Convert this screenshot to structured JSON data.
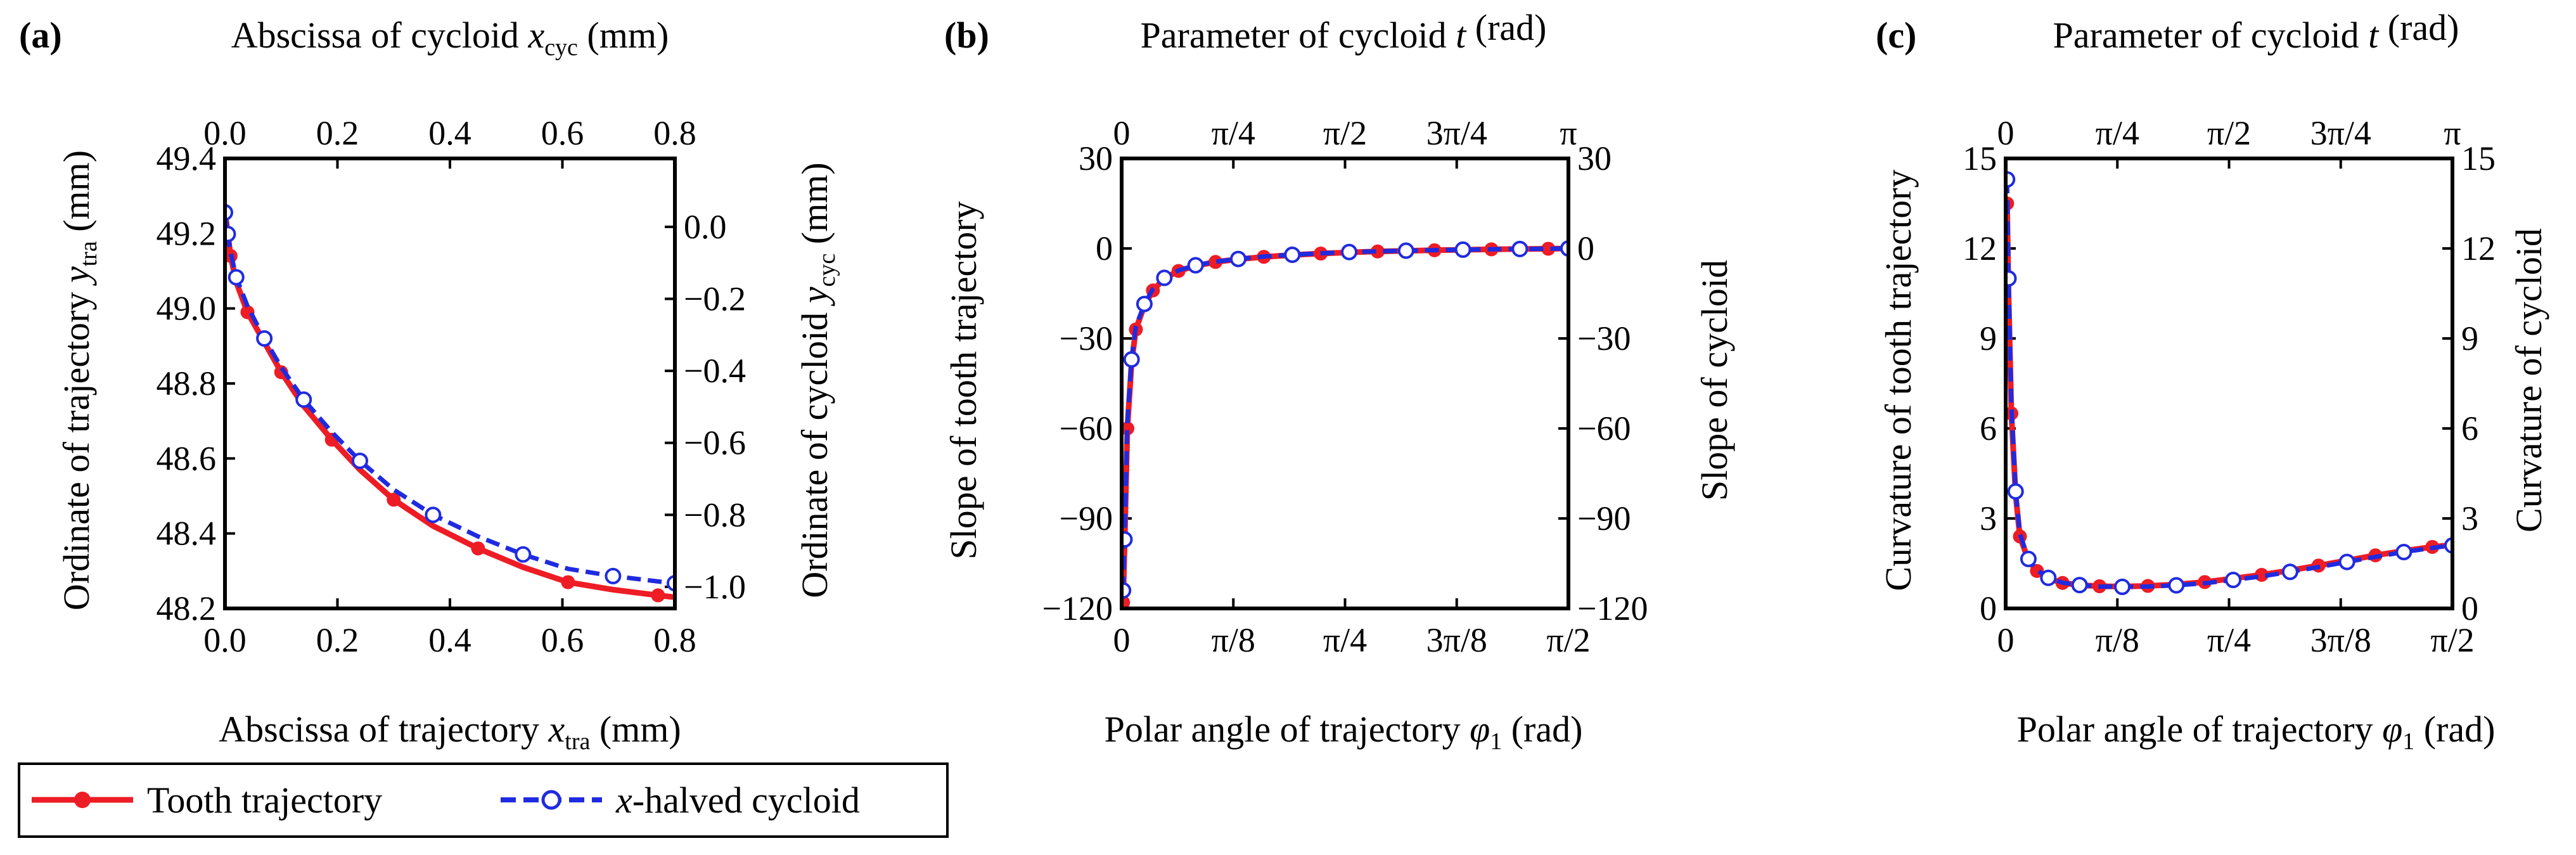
{
  "chart_data": [
    {
      "type": "line",
      "panel_label": "(a)",
      "top_xlabel": {
        "pre": "Abscissa of cycloid ",
        "var": "x",
        "sub": "cyc",
        "post": " (mm)"
      },
      "bottom_xlabel": {
        "pre": "Abscissa of trajectory ",
        "var": "x",
        "sub": "tra",
        "post": " (mm)"
      },
      "left_ylabel": {
        "pre": "Ordinate of trajectory ",
        "var": "y",
        "sub": "tra",
        "post": " (mm)"
      },
      "right_ylabel": {
        "pre": "Ordinate of cycloid ",
        "var": "y",
        "sub": "cyc",
        "post": " (mm)"
      },
      "xlim": [
        0,
        0.8
      ],
      "ylim_left": [
        48.2,
        49.4
      ],
      "ylim_right": [
        -1.06,
        0.19
      ],
      "bottom_ticks": [
        {
          "v": 0,
          "label": "0.0"
        },
        {
          "v": 0.2,
          "label": "0.2"
        },
        {
          "v": 0.4,
          "label": "0.4"
        },
        {
          "v": 0.6,
          "label": "0.6"
        },
        {
          "v": 0.8,
          "label": "0.8"
        }
      ],
      "top_ticks": [
        {
          "v": 0,
          "label": "0.0"
        },
        {
          "v": 0.2,
          "label": "0.2"
        },
        {
          "v": 0.4,
          "label": "0.4"
        },
        {
          "v": 0.6,
          "label": "0.6"
        },
        {
          "v": 0.8,
          "label": "0.8"
        }
      ],
      "left_ticks": [
        {
          "v": 48.2,
          "label": "48.2"
        },
        {
          "v": 48.4,
          "label": "48.4"
        },
        {
          "v": 48.6,
          "label": "48.6"
        },
        {
          "v": 48.8,
          "label": "48.8"
        },
        {
          "v": 49.0,
          "label": "49.0"
        },
        {
          "v": 49.2,
          "label": "49.2"
        },
        {
          "v": 49.4,
          "label": "49.4"
        }
      ],
      "right_ticks": [
        {
          "v": 0.0,
          "label": "0.0"
        },
        {
          "v": -0.2,
          "label": "−0.2"
        },
        {
          "v": -0.4,
          "label": "−0.4"
        },
        {
          "v": -0.6,
          "label": "−0.6"
        },
        {
          "v": -0.8,
          "label": "−0.8"
        },
        {
          "v": -1.0,
          "label": "−1.0"
        }
      ],
      "series": [
        {
          "name": "Tooth trajectory",
          "axis": "left",
          "x": [
            0.0,
            0.005,
            0.01,
            0.02,
            0.04,
            0.07,
            0.1,
            0.14,
            0.19,
            0.24,
            0.3,
            0.37,
            0.45,
            0.53,
            0.61,
            0.69,
            0.77,
            0.8
          ],
          "y": [
            49.26,
            49.2,
            49.14,
            49.07,
            48.99,
            48.91,
            48.83,
            48.74,
            48.65,
            48.57,
            48.49,
            48.42,
            48.36,
            48.31,
            48.27,
            48.25,
            48.235,
            48.23
          ]
        },
        {
          "name": "x-halved cycloid",
          "axis": "right",
          "x": [
            0.0,
            0.005,
            0.01,
            0.02,
            0.04,
            0.07,
            0.1,
            0.14,
            0.19,
            0.24,
            0.3,
            0.37,
            0.45,
            0.53,
            0.61,
            0.69,
            0.77,
            0.8
          ],
          "y": [
            0.04,
            -0.02,
            -0.07,
            -0.14,
            -0.22,
            -0.31,
            -0.39,
            -0.48,
            -0.57,
            -0.65,
            -0.73,
            -0.8,
            -0.86,
            -0.91,
            -0.95,
            -0.97,
            -0.985,
            -0.99
          ]
        }
      ]
    },
    {
      "type": "line",
      "panel_label": "(b)",
      "top_xlabel": {
        "pre": "Parameter of cycloid ",
        "var": "t",
        "sub": "",
        "post": " (rad)"
      },
      "bottom_xlabel": {
        "pre": "Polar angle of trajectory ",
        "var": "φ",
        "sub": "1",
        "post": " (rad)"
      },
      "left_ylabel": {
        "pre": "Slope of tooth trajectory",
        "var": "",
        "sub": "",
        "post": ""
      },
      "right_ylabel": {
        "pre": "Slope of cycloid",
        "var": "",
        "sub": "",
        "post": ""
      },
      "xlim": [
        0,
        1.5708
      ],
      "ylim_left": [
        -120,
        30
      ],
      "ylim_right": [
        -120,
        30
      ],
      "bottom_ticks": [
        {
          "v": 0,
          "label": "0"
        },
        {
          "v": 0.3927,
          "label": "π/8"
        },
        {
          "v": 0.7854,
          "label": "π/4"
        },
        {
          "v": 1.1781,
          "label": "3π/8"
        },
        {
          "v": 1.5708,
          "label": "π/2"
        }
      ],
      "top_ticks": [
        {
          "v": 0,
          "label": "0"
        },
        {
          "v": 0.3927,
          "label": "π/4"
        },
        {
          "v": 0.7854,
          "label": "π/2"
        },
        {
          "v": 1.1781,
          "label": "3π/4"
        },
        {
          "v": 1.5708,
          "label": "π"
        }
      ],
      "left_ticks": [
        {
          "v": -120,
          "label": "−120"
        },
        {
          "v": -90,
          "label": "−90"
        },
        {
          "v": -60,
          "label": "−60"
        },
        {
          "v": -30,
          "label": "−30"
        },
        {
          "v": 0,
          "label": "0"
        },
        {
          "v": 30,
          "label": "30"
        }
      ],
      "right_ticks": [
        {
          "v": -120,
          "label": "−120"
        },
        {
          "v": -90,
          "label": "−90"
        },
        {
          "v": -60,
          "label": "−60"
        },
        {
          "v": -30,
          "label": "−30"
        },
        {
          "v": 0,
          "label": "0"
        },
        {
          "v": 30,
          "label": "30"
        }
      ],
      "series": [
        {
          "name": "Tooth trajectory",
          "axis": "left",
          "x": [
            0.005,
            0.01,
            0.02,
            0.035,
            0.05,
            0.08,
            0.11,
            0.15,
            0.2,
            0.26,
            0.33,
            0.41,
            0.5,
            0.6,
            0.7,
            0.8,
            0.9,
            1.0,
            1.1,
            1.2,
            1.3,
            1.4,
            1.5,
            1.5708
          ],
          "y": [
            -118,
            -100,
            -60,
            -38,
            -27,
            -19,
            -14,
            -10,
            -7.5,
            -5.8,
            -4.5,
            -3.6,
            -2.8,
            -2.2,
            -1.7,
            -1.3,
            -1.0,
            -0.8,
            -0.6,
            -0.45,
            -0.3,
            -0.2,
            -0.1,
            0
          ]
        },
        {
          "name": "x-halved cycloid",
          "axis": "right",
          "x": [
            0.005,
            0.01,
            0.02,
            0.035,
            0.05,
            0.08,
            0.11,
            0.15,
            0.2,
            0.26,
            0.33,
            0.41,
            0.5,
            0.6,
            0.7,
            0.8,
            0.9,
            1.0,
            1.1,
            1.2,
            1.3,
            1.4,
            1.5,
            1.5708
          ],
          "y": [
            -114,
            -97,
            -58,
            -37,
            -26,
            -18.5,
            -13.5,
            -9.8,
            -7.3,
            -5.6,
            -4.4,
            -3.5,
            -2.7,
            -2.1,
            -1.6,
            -1.2,
            -0.95,
            -0.75,
            -0.55,
            -0.4,
            -0.28,
            -0.18,
            -0.08,
            0
          ]
        }
      ]
    },
    {
      "type": "line",
      "panel_label": "(c)",
      "top_xlabel": {
        "pre": "Parameter of cycloid ",
        "var": "t",
        "sub": "",
        "post": " (rad)"
      },
      "bottom_xlabel": {
        "pre": "Polar angle of trajectory ",
        "var": "φ",
        "sub": "1",
        "post": " (rad)"
      },
      "left_ylabel": {
        "pre": "Curvature of tooth trajectory",
        "var": "",
        "sub": "",
        "post": ""
      },
      "right_ylabel": {
        "pre": "Curvature of cycloid",
        "var": "",
        "sub": "",
        "post": ""
      },
      "xlim": [
        0,
        1.5708
      ],
      "ylim_left": [
        0,
        15
      ],
      "ylim_right": [
        0,
        15
      ],
      "bottom_ticks": [
        {
          "v": 0,
          "label": "0"
        },
        {
          "v": 0.3927,
          "label": "π/8"
        },
        {
          "v": 0.7854,
          "label": "π/4"
        },
        {
          "v": 1.1781,
          "label": "3π/8"
        },
        {
          "v": 1.5708,
          "label": "π/2"
        }
      ],
      "top_ticks": [
        {
          "v": 0,
          "label": "0"
        },
        {
          "v": 0.3927,
          "label": "π/4"
        },
        {
          "v": 0.7854,
          "label": "π/2"
        },
        {
          "v": 1.1781,
          "label": "3π/4"
        },
        {
          "v": 1.5708,
          "label": "π"
        }
      ],
      "left_ticks": [
        {
          "v": 0,
          "label": "0"
        },
        {
          "v": 3,
          "label": "3"
        },
        {
          "v": 6,
          "label": "6"
        },
        {
          "v": 9,
          "label": "9"
        },
        {
          "v": 12,
          "label": "12"
        },
        {
          "v": 15,
          "label": "15"
        }
      ],
      "right_ticks": [
        {
          "v": 0,
          "label": "0"
        },
        {
          "v": 3,
          "label": "3"
        },
        {
          "v": 6,
          "label": "6"
        },
        {
          "v": 9,
          "label": "9"
        },
        {
          "v": 12,
          "label": "12"
        },
        {
          "v": 15,
          "label": "15"
        }
      ],
      "series": [
        {
          "name": "Tooth trajectory",
          "axis": "left",
          "x": [
            0.005,
            0.01,
            0.02,
            0.035,
            0.05,
            0.08,
            0.11,
            0.15,
            0.2,
            0.26,
            0.33,
            0.41,
            0.5,
            0.6,
            0.7,
            0.8,
            0.9,
            1.0,
            1.1,
            1.2,
            1.3,
            1.4,
            1.5,
            1.5708
          ],
          "y": [
            13.5,
            10.5,
            6.5,
            3.8,
            2.4,
            1.6,
            1.25,
            1.0,
            0.85,
            0.78,
            0.74,
            0.73,
            0.75,
            0.8,
            0.88,
            1.0,
            1.12,
            1.27,
            1.43,
            1.6,
            1.77,
            1.92,
            2.05,
            2.12
          ]
        },
        {
          "name": "x-halved cycloid",
          "axis": "right",
          "x": [
            0.005,
            0.01,
            0.02,
            0.035,
            0.05,
            0.08,
            0.11,
            0.15,
            0.2,
            0.26,
            0.33,
            0.41,
            0.5,
            0.6,
            0.7,
            0.8,
            0.9,
            1.0,
            1.1,
            1.2,
            1.3,
            1.4,
            1.5,
            1.5708
          ],
          "y": [
            14.3,
            11.0,
            6.8,
            3.9,
            2.5,
            1.65,
            1.28,
            1.02,
            0.86,
            0.78,
            0.73,
            0.72,
            0.73,
            0.77,
            0.84,
            0.95,
            1.07,
            1.22,
            1.38,
            1.55,
            1.72,
            1.88,
            2.02,
            2.1
          ]
        }
      ]
    }
  ],
  "legend": {
    "items": [
      {
        "name": "Tooth trajectory"
      },
      {
        "name": "x-halved cycloid",
        "var": "x",
        "rest": "-halved cycloid"
      }
    ],
    "placement": "bottom-left"
  },
  "colors": {
    "trajectory": "#ee1c25",
    "cycloid": "#1f2be0",
    "axis": "#000000"
  }
}
